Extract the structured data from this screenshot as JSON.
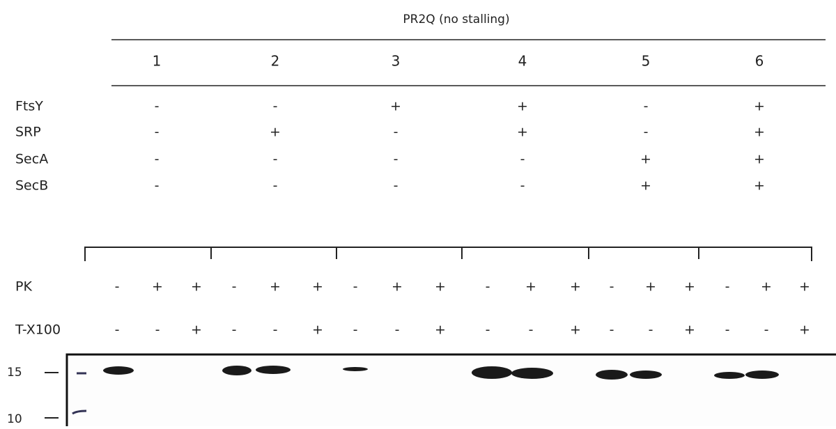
{
  "title": "PR2Q (no stalling)",
  "lanes": [
    "1",
    "2",
    "3",
    "4",
    "5",
    "6"
  ],
  "conditions": [
    {
      "label": "FtsY",
      "values": [
        "-",
        "-",
        "+",
        "+",
        "-",
        "+"
      ]
    },
    {
      "label": "SRP",
      "values": [
        "-",
        "+",
        "-",
        "+",
        "-",
        "+"
      ]
    },
    {
      "label": "SecA",
      "values": [
        "-",
        "-",
        "-",
        "-",
        "+",
        "+"
      ]
    },
    {
      "label": "SecB",
      "values": [
        "-",
        "-",
        "-",
        "-",
        "+",
        "+"
      ]
    }
  ],
  "treatments": [
    {
      "label": "PK",
      "values": [
        "-",
        "+",
        "+",
        "-",
        "+",
        "+",
        "-",
        "+",
        "+",
        "-",
        "+",
        "+",
        "-",
        "+",
        "+",
        "-",
        "+",
        "+"
      ]
    },
    {
      "label": "T-X100",
      "values": [
        "-",
        "-",
        "+",
        "-",
        "-",
        "+",
        "-",
        "-",
        "+",
        "-",
        "-",
        "+",
        "-",
        "-",
        "+",
        "-",
        "-",
        "+"
      ]
    }
  ],
  "markers": [
    "15",
    "10"
  ]
}
